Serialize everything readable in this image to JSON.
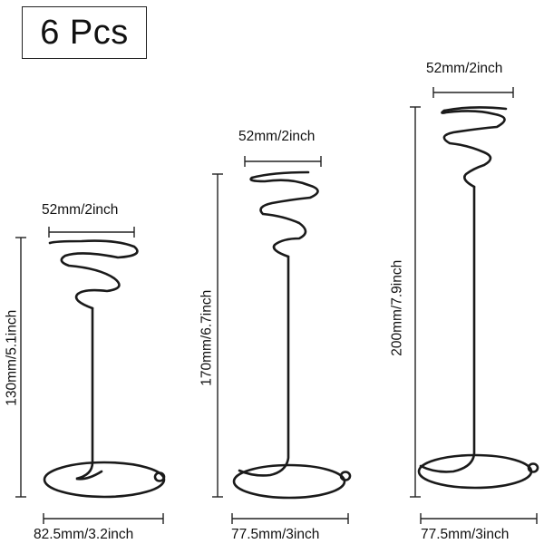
{
  "badge": {
    "text": "6 Pcs"
  },
  "products": [
    {
      "top_width": "52mm/2inch",
      "height": "130mm/5.1inch",
      "base_width": "82.5mm/3.2inch"
    },
    {
      "top_width": "52mm/2inch",
      "height": "170mm/6.7inch",
      "base_width": "77.5mm/3inch"
    },
    {
      "top_width": "52mm/2inch",
      "height": "200mm/7.9inch",
      "base_width": "77.5mm/3inch"
    }
  ],
  "colors": {
    "wire": "#1a1a1a",
    "dimension_line": "#222222",
    "background": "#ffffff"
  }
}
